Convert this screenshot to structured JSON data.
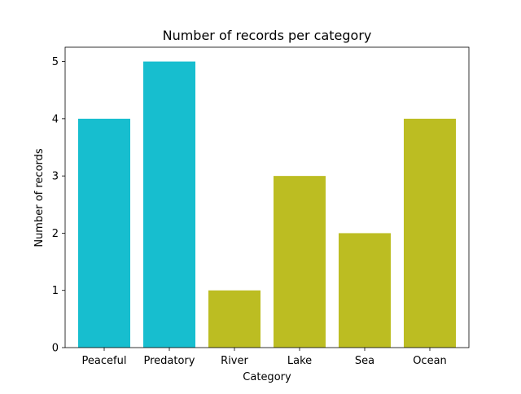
{
  "chart_data": {
    "type": "bar",
    "title": "Number of records per category",
    "xlabel": "Category",
    "ylabel": "Number of records",
    "categories": [
      "Peaceful",
      "Predatory",
      "River",
      "Lake",
      "Sea",
      "Ocean"
    ],
    "values": [
      4,
      5,
      1,
      3,
      2,
      4
    ],
    "bar_colors": [
      "#17becf",
      "#17becf",
      "#bcbd22",
      "#bcbd22",
      "#bcbd22",
      "#bcbd22"
    ],
    "ylim": [
      0,
      5.25
    ],
    "yticks": [
      0,
      1,
      2,
      3,
      4,
      5
    ],
    "grid": false,
    "legend": "none"
  }
}
